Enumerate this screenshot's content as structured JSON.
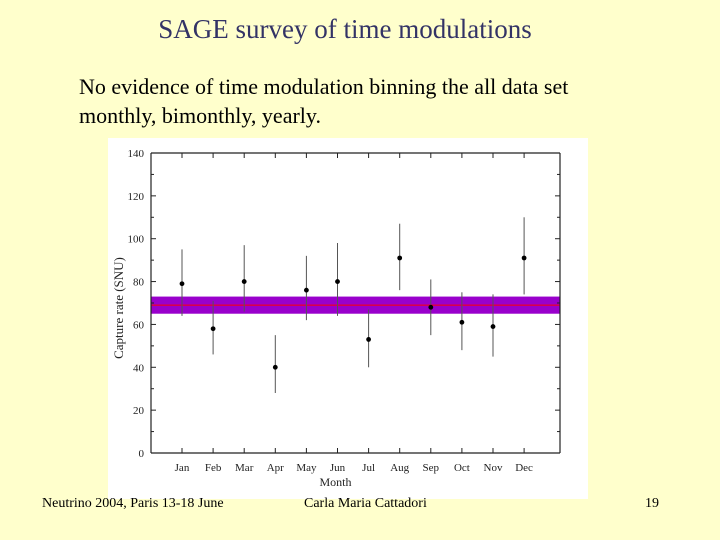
{
  "slide": {
    "title": "SAGE survey of time modulations",
    "body_line1": "No evidence of time modulation binning the all data set",
    "body_line2": "monthly, bimonthly, yearly."
  },
  "footer": {
    "left": "Neutrino 2004, Paris 13-18 June",
    "center": "Carla Maria Cattadori",
    "page": "19"
  },
  "chart_data": {
    "type": "scatter",
    "title": "",
    "xlabel": "Month",
    "ylabel": "Capture rate (SNU)",
    "categories": [
      "Jan",
      "Feb",
      "Mar",
      "Apr",
      "May",
      "Jun",
      "Jul",
      "Aug",
      "Sep",
      "Oct",
      "Nov",
      "Dec"
    ],
    "ylim": [
      0,
      140
    ],
    "yticks": [
      0,
      20,
      40,
      60,
      80,
      100,
      120,
      140
    ],
    "series": [
      {
        "values": [
          79,
          58,
          80,
          40,
          76,
          80,
          53,
          91,
          68,
          61,
          59,
          91
        ],
        "err_low": [
          64,
          46,
          66,
          28,
          62,
          64,
          40,
          76,
          55,
          48,
          45,
          74
        ],
        "err_high": [
          95,
          71,
          97,
          55,
          92,
          98,
          67,
          107,
          81,
          75,
          74,
          110
        ]
      }
    ],
    "band": {
      "low": 65,
      "high": 73,
      "center": 69,
      "color": "#9900CC",
      "line_color": "#FF0000"
    },
    "grid": false
  }
}
